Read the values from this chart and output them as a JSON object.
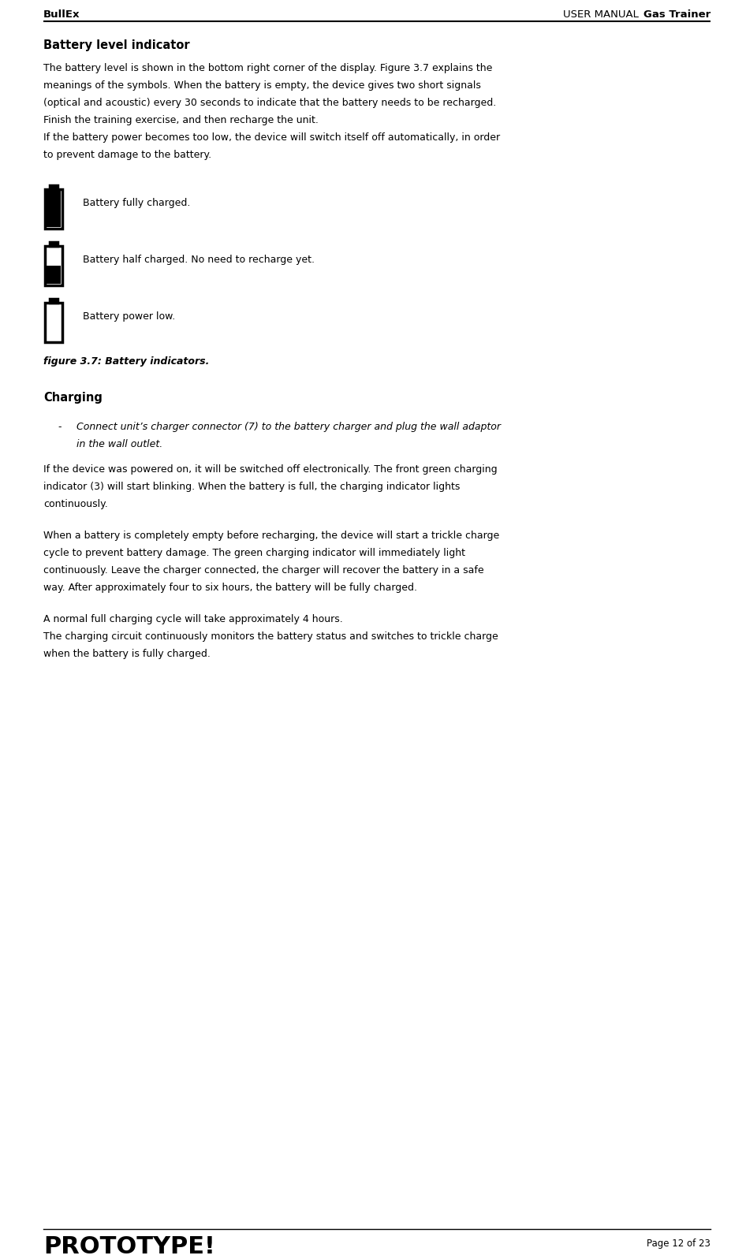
{
  "header_left": "BullEx",
  "header_right_normal": "USER MANUAL ",
  "header_right_bold": "Gas Trainer",
  "footer_left": "PROTOTYPE!",
  "footer_right": "Page 12 of 23",
  "section1_title": "Battery level indicator",
  "section1_body_lines": [
    "The battery level is shown in the bottom right corner of the display. Figure 3.7 explains the",
    "meanings of the symbols. When the battery is empty, the device gives two short signals",
    "(optical and acoustic) every 30 seconds to indicate that the battery needs to be recharged.",
    "Finish the training exercise, and then recharge the unit.",
    "If the battery power becomes too low, the device will switch itself off automatically, in order",
    "to prevent damage to the battery."
  ],
  "battery_label1": "Battery fully charged.",
  "battery_label2": "Battery half charged. No need to recharge yet.",
  "battery_label3": "Battery power low.",
  "figure_caption": "figure 3.7: Battery indicators.",
  "section2_title": "Charging",
  "bullet_line1": "Connect unit’s charger connector (7) to the battery charger and plug the wall adaptor",
  "bullet_line2": "in the wall outlet.",
  "para1_lines": [
    "If the device was powered on, it will be switched off electronically. The front green charging",
    "indicator (3) will start blinking. When the battery is full, the charging indicator lights",
    "continuously."
  ],
  "para2_lines": [
    "When a battery is completely empty before recharging, the device will start a trickle charge",
    "cycle to prevent battery damage. The green charging indicator will immediately light",
    "continuously. Leave the charger connected, the charger will recover the battery in a safe",
    "way. After approximately four to six hours, the battery will be fully charged."
  ],
  "para3_lines": [
    "A normal full charging cycle will take approximately 4 hours.",
    "The charging circuit continuously monitors the battery status and switches to trickle charge",
    "when the battery is fully charged."
  ],
  "bg_color": "#ffffff",
  "text_color": "#000000",
  "fig_width": 9.46,
  "fig_height": 15.97
}
